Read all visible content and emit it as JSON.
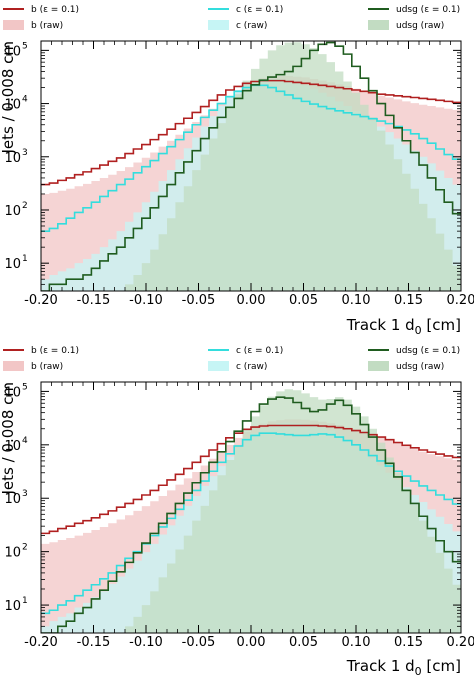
{
  "chart_data": [
    {
      "type": "histogram",
      "xlabel": "Track 1 d₀ [cm]",
      "xlabel_main": "Track 1 d",
      "xlabel_sub": "0",
      "xlabel_unit": "[cm]",
      "ylabel": "Jets / 0.008 cm",
      "xlim": [
        -0.2,
        0.2
      ],
      "ylim": [
        3,
        150000
      ],
      "yscale": "log",
      "bin_width": 0.008,
      "x_ticks": [
        "-0.20",
        "-0.15",
        "-0.10",
        "-0.05",
        "0.00",
        "0.05",
        "0.10",
        "0.15",
        "0.20"
      ],
      "y_ticks": [
        {
          "base": "10",
          "exp": "1"
        },
        {
          "base": "10",
          "exp": "2"
        },
        {
          "base": "10",
          "exp": "3"
        },
        {
          "base": "10",
          "exp": "4"
        },
        {
          "base": "10",
          "exp": "5"
        }
      ],
      "legend_position": "top",
      "series": [
        {
          "name": "b (ε = 0.1)",
          "style": "step",
          "color": "#b02020",
          "values": [
            300,
            320,
            360,
            400,
            460,
            520,
            600,
            700,
            820,
            950,
            1150,
            1400,
            1700,
            2100,
            2600,
            3300,
            4200,
            5300,
            6800,
            8800,
            11500,
            14500,
            18000,
            21000,
            24000,
            26000,
            27000,
            27000,
            27000,
            26000,
            25000,
            24000,
            23000,
            22000,
            21000,
            20000,
            19000,
            18000,
            17000,
            16000,
            15000,
            14500,
            14000,
            13500,
            13000,
            12500,
            12000,
            11500,
            11000,
            10500
          ]
        },
        {
          "name": "c (ε = 0.1)",
          "style": "step",
          "color": "#33dddd",
          "values": [
            40,
            45,
            55,
            70,
            90,
            110,
            140,
            180,
            230,
            300,
            380,
            500,
            650,
            850,
            1150,
            1550,
            2100,
            2900,
            4000,
            5500,
            7500,
            10000,
            13500,
            17000,
            20000,
            22000,
            22000,
            20000,
            17000,
            14500,
            12500,
            11000,
            9800,
            8800,
            8000,
            7300,
            6700,
            6200,
            5700,
            5200,
            4700,
            4200,
            3700,
            3200,
            2700,
            2200,
            1800,
            1400,
            1100,
            900
          ]
        },
        {
          "name": "udsg (ε = 0.1)",
          "style": "step",
          "color": "#1f5c1f",
          "values": [
            3,
            4,
            4,
            5,
            5,
            6,
            8,
            11,
            15,
            20,
            30,
            45,
            70,
            110,
            180,
            300,
            500,
            800,
            1300,
            2200,
            3500,
            5500,
            8500,
            12500,
            17500,
            22500,
            27500,
            31500,
            35000,
            40000,
            50000,
            70000,
            100000,
            130000,
            140000,
            120000,
            85000,
            50000,
            30000,
            17500,
            10000,
            6000,
            3500,
            2000,
            1200,
            700,
            400,
            240,
            140,
            85
          ]
        },
        {
          "name": "b (raw)",
          "style": "fill",
          "color": "#f2c6c6",
          "values": [
            200,
            210,
            230,
            250,
            280,
            310,
            350,
            400,
            460,
            540,
            640,
            780,
            960,
            1200,
            1550,
            2000,
            2600,
            3400,
            4500,
            6000,
            8000,
            10500,
            14000,
            18000,
            23000,
            27000,
            30000,
            32000,
            33000,
            33000,
            32000,
            31000,
            29000,
            27000,
            25000,
            23000,
            21000,
            19000,
            17000,
            15500,
            14000,
            13000,
            12000,
            11000,
            10200,
            9500,
            9000,
            8500,
            8000,
            7600
          ]
        },
        {
          "name": "c (raw)",
          "style": "fill",
          "color": "#c6f5f5",
          "values": [
            5,
            6,
            7,
            8,
            10,
            12,
            15,
            20,
            28,
            40,
            60,
            90,
            140,
            220,
            350,
            560,
            900,
            1450,
            2300,
            3700,
            5800,
            9000,
            13000,
            18000,
            23000,
            27000,
            29000,
            29500,
            29000,
            27500,
            25000,
            22000,
            19000,
            16000,
            13500,
            11000,
            9000,
            7300,
            5900,
            4700,
            3700,
            2900,
            2200,
            1700,
            1300,
            1000,
            750,
            550,
            400,
            300
          ]
        },
        {
          "name": "udsg (raw)",
          "style": "fill",
          "color": "#c2dcc2",
          "values": [
            3,
            3,
            3,
            3,
            3,
            3,
            3,
            3,
            3,
            3,
            4,
            6,
            10,
            18,
            35,
            70,
            140,
            280,
            560,
            1100,
            2200,
            4300,
            8200,
            15000,
            27000,
            45000,
            70000,
            100000,
            125000,
            140000,
            142000,
            130000,
            110000,
            85000,
            60000,
            40000,
            26000,
            16000,
            9500,
            5500,
            3100,
            1700,
            900,
            480,
            250,
            130,
            70,
            36,
            18,
            9
          ]
        }
      ]
    },
    {
      "type": "histogram",
      "xlabel": "Track 1 d₀ [cm]",
      "xlabel_main": "Track 1 d",
      "xlabel_sub": "0",
      "xlabel_unit": "[cm]",
      "ylabel": "Jets / 0.008 cm",
      "xlim": [
        -0.2,
        0.2
      ],
      "ylim": [
        3,
        150000
      ],
      "yscale": "log",
      "bin_width": 0.008,
      "x_ticks": [
        "-0.20",
        "-0.15",
        "-0.10",
        "-0.05",
        "0.00",
        "0.05",
        "0.10",
        "0.15",
        "0.20"
      ],
      "y_ticks": [
        {
          "base": "10",
          "exp": "1"
        },
        {
          "base": "10",
          "exp": "2"
        },
        {
          "base": "10",
          "exp": "3"
        },
        {
          "base": "10",
          "exp": "4"
        },
        {
          "base": "10",
          "exp": "5"
        }
      ],
      "legend_position": "top",
      "series": [
        {
          "name": "b (ε = 0.1)",
          "style": "step",
          "color": "#b02020",
          "values": [
            220,
            240,
            270,
            300,
            340,
            380,
            430,
            500,
            580,
            680,
            800,
            950,
            1150,
            1400,
            1750,
            2200,
            2800,
            3600,
            4700,
            6100,
            8000,
            10500,
            13500,
            16500,
            19500,
            21500,
            22500,
            23000,
            23000,
            23000,
            23000,
            23000,
            23000,
            22500,
            22000,
            21000,
            20000,
            18500,
            17000,
            15500,
            14000,
            12500,
            11000,
            9800,
            8800,
            8000,
            7300,
            6700,
            6200,
            5800
          ]
        },
        {
          "name": "c (ε = 0.1)",
          "style": "step",
          "color": "#33dddd",
          "values": [
            7,
            8,
            10,
            12,
            15,
            19,
            24,
            31,
            40,
            55,
            75,
            100,
            140,
            200,
            290,
            420,
            620,
            920,
            1400,
            2100,
            3200,
            4700,
            6800,
            9500,
            12500,
            15000,
            16500,
            16500,
            16000,
            15500,
            15000,
            15000,
            15500,
            16000,
            15500,
            14000,
            12000,
            10000,
            8000,
            6300,
            5000,
            4000,
            3200,
            2600,
            2100,
            1700,
            1400,
            1150,
            950,
            780
          ]
        },
        {
          "name": "udsg (ε = 0.1)",
          "style": "step",
          "color": "#1f5c1f",
          "values": [
            3,
            3,
            4,
            5,
            7,
            9,
            13,
            19,
            28,
            42,
            63,
            95,
            145,
            220,
            340,
            520,
            800,
            1250,
            1950,
            3000,
            4700,
            7400,
            11500,
            18000,
            28000,
            42000,
            58000,
            72000,
            78000,
            75000,
            62000,
            48000,
            42000,
            45000,
            58000,
            68000,
            55000,
            38000,
            24000,
            14000,
            8000,
            4500,
            2500,
            1400,
            800,
            460,
            270,
            160,
            100,
            65
          ]
        },
        {
          "name": "b (raw)",
          "style": "fill",
          "color": "#f2c6c6",
          "values": [
            140,
            150,
            165,
            180,
            200,
            225,
            255,
            290,
            340,
            400,
            480,
            580,
            710,
            880,
            1100,
            1400,
            1800,
            2350,
            3100,
            4100,
            5500,
            7400,
            10000,
            13500,
            17500,
            21500,
            25000,
            27500,
            29000,
            30000,
            30000,
            29500,
            28500,
            27000,
            25500,
            23500,
            21500,
            19500,
            17500,
            15500,
            13500,
            12000,
            10500,
            9300,
            8300,
            7400,
            6700,
            6100,
            5600,
            5200
          ]
        },
        {
          "name": "c (raw)",
          "style": "fill",
          "color": "#c6f5f5",
          "values": [
            4,
            5,
            6,
            7,
            9,
            11,
            14,
            18,
            25,
            34,
            48,
            68,
            98,
            140,
            210,
            310,
            470,
            720,
            1100,
            1700,
            2600,
            4000,
            6000,
            8800,
            12500,
            16500,
            20500,
            23500,
            25500,
            26000,
            25500,
            24500,
            23000,
            21000,
            18500,
            15500,
            12500,
            9800,
            7500,
            5600,
            4100,
            3000,
            2200,
            1600,
            1150,
            850,
            620,
            450,
            330,
            240
          ]
        },
        {
          "name": "udsg (raw)",
          "style": "fill",
          "color": "#c2dcc2",
          "values": [
            3,
            3,
            3,
            3,
            3,
            3,
            3,
            3,
            3,
            3,
            4,
            6,
            10,
            18,
            33,
            60,
            110,
            200,
            380,
            720,
            1400,
            2700,
            5200,
            10000,
            19000,
            34000,
            55000,
            80000,
            100000,
            110000,
            105000,
            92000,
            78000,
            70000,
            72000,
            78000,
            70000,
            52000,
            34000,
            20000,
            11000,
            5800,
            3000,
            1500,
            760,
            380,
            190,
            95,
            48,
            24
          ]
        }
      ]
    }
  ]
}
